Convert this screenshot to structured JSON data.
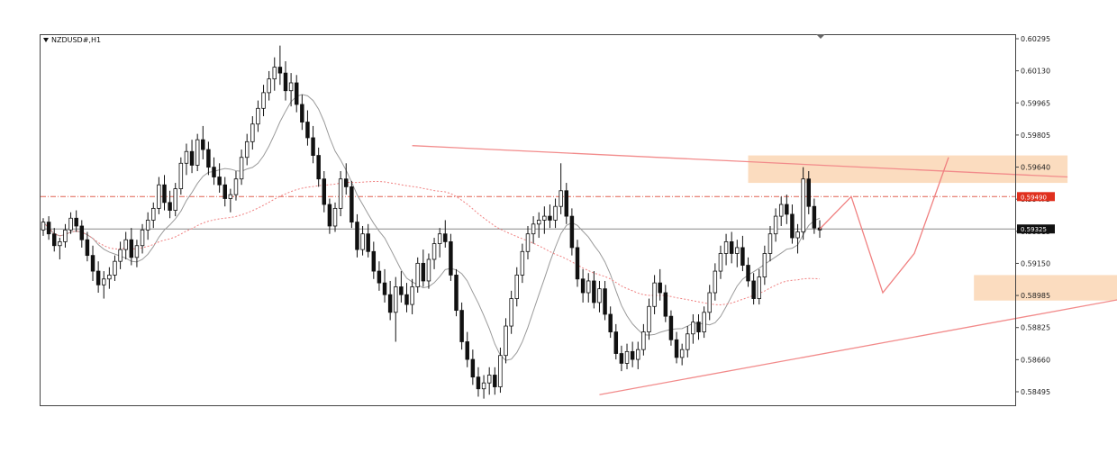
{
  "chart_data": {
    "type": "candlestick",
    "title": "NZDUSD#,H1",
    "y_ticks": [
      "0.60295",
      "0.60130",
      "0.59965",
      "0.59805",
      "0.59640",
      "0.59475",
      "0.59315",
      "0.59150",
      "0.58985",
      "0.58825",
      "0.58660",
      "0.58495"
    ],
    "ylim": [
      0.5844,
      0.6031
    ],
    "price_tags": [
      {
        "name": "red-level",
        "value": "0.59490",
        "color": "#e0301e"
      },
      {
        "name": "current-price",
        "value": "0.59325",
        "color": "#111111"
      }
    ],
    "x_range": [
      0,
      195
    ],
    "candles": [
      [
        0,
        0.5932,
        0.5938,
        0.5929,
        0.5936
      ],
      [
        1,
        0.5936,
        0.5939,
        0.5927,
        0.593
      ],
      [
        2,
        0.593,
        0.5933,
        0.5921,
        0.5924
      ],
      [
        3,
        0.5924,
        0.5928,
        0.5917,
        0.5926
      ],
      [
        4,
        0.5926,
        0.5935,
        0.5923,
        0.5932
      ],
      [
        5,
        0.5932,
        0.5941,
        0.593,
        0.5938
      ],
      [
        6,
        0.5938,
        0.5942,
        0.5931,
        0.5934
      ],
      [
        7,
        0.5934,
        0.5937,
        0.5923,
        0.5927
      ],
      [
        8,
        0.5927,
        0.5931,
        0.5916,
        0.5919
      ],
      [
        9,
        0.5919,
        0.5924,
        0.5906,
        0.5911
      ],
      [
        10,
        0.5911,
        0.5916,
        0.59,
        0.5904
      ],
      [
        11,
        0.5904,
        0.5911,
        0.5897,
        0.5907
      ],
      [
        12,
        0.5907,
        0.5913,
        0.5902,
        0.5909
      ],
      [
        13,
        0.5909,
        0.5919,
        0.5906,
        0.5916
      ],
      [
        14,
        0.5916,
        0.5926,
        0.5912,
        0.5922
      ],
      [
        15,
        0.5922,
        0.5931,
        0.5917,
        0.5927
      ],
      [
        16,
        0.5927,
        0.5933,
        0.5914,
        0.5918
      ],
      [
        17,
        0.5918,
        0.5927,
        0.5913,
        0.5924
      ],
      [
        18,
        0.5924,
        0.5935,
        0.592,
        0.5932
      ],
      [
        19,
        0.5932,
        0.5941,
        0.5927,
        0.5937
      ],
      [
        20,
        0.5937,
        0.5946,
        0.5933,
        0.5943
      ],
      [
        21,
        0.5943,
        0.5959,
        0.594,
        0.5955
      ],
      [
        22,
        0.5955,
        0.596,
        0.5942,
        0.5946
      ],
      [
        23,
        0.5946,
        0.5952,
        0.5938,
        0.5942
      ],
      [
        24,
        0.5942,
        0.5956,
        0.5939,
        0.5953
      ],
      [
        25,
        0.5953,
        0.5969,
        0.595,
        0.5966
      ],
      [
        26,
        0.5966,
        0.5976,
        0.596,
        0.5972
      ],
      [
        27,
        0.5972,
        0.5978,
        0.5961,
        0.5965
      ],
      [
        28,
        0.5965,
        0.5981,
        0.5962,
        0.5978
      ],
      [
        29,
        0.5978,
        0.5985,
        0.5968,
        0.5973
      ],
      [
        30,
        0.5973,
        0.5977,
        0.596,
        0.5964
      ],
      [
        31,
        0.5964,
        0.5969,
        0.5955,
        0.5959
      ],
      [
        32,
        0.5959,
        0.5966,
        0.5951,
        0.5955
      ],
      [
        33,
        0.5955,
        0.5959,
        0.5944,
        0.5948
      ],
      [
        34,
        0.5948,
        0.5953,
        0.5941,
        0.595
      ],
      [
        35,
        0.595,
        0.5962,
        0.5947,
        0.5958
      ],
      [
        36,
        0.5958,
        0.5973,
        0.5955,
        0.5969
      ],
      [
        37,
        0.5969,
        0.5981,
        0.5965,
        0.5977
      ],
      [
        38,
        0.5977,
        0.599,
        0.5973,
        0.5986
      ],
      [
        39,
        0.5986,
        0.5998,
        0.5982,
        0.5994
      ],
      [
        40,
        0.5994,
        0.6006,
        0.599,
        0.6002
      ],
      [
        41,
        0.6002,
        0.6013,
        0.5998,
        0.6009
      ],
      [
        42,
        0.6009,
        0.602,
        0.6003,
        0.6015
      ],
      [
        43,
        0.6015,
        0.6026,
        0.6006,
        0.6012
      ],
      [
        44,
        0.6012,
        0.6018,
        0.5998,
        0.6003
      ],
      [
        45,
        0.6003,
        0.6012,
        0.5995,
        0.6007
      ],
      [
        46,
        0.6007,
        0.6011,
        0.5992,
        0.5996
      ],
      [
        47,
        0.5996,
        0.6001,
        0.5983,
        0.5987
      ],
      [
        48,
        0.5987,
        0.5993,
        0.5975,
        0.5979
      ],
      [
        49,
        0.5979,
        0.5985,
        0.5966,
        0.597
      ],
      [
        50,
        0.597,
        0.5974,
        0.5954,
        0.5958
      ],
      [
        51,
        0.5958,
        0.5962,
        0.5941,
        0.5945
      ],
      [
        52,
        0.5945,
        0.5948,
        0.593,
        0.5934
      ],
      [
        53,
        0.5934,
        0.5946,
        0.5931,
        0.5943
      ],
      [
        54,
        0.5943,
        0.5962,
        0.5939,
        0.5958
      ],
      [
        55,
        0.5958,
        0.5966,
        0.595,
        0.5954
      ],
      [
        56,
        0.5954,
        0.5957,
        0.5933,
        0.5936
      ],
      [
        57,
        0.5936,
        0.594,
        0.5918,
        0.5922
      ],
      [
        58,
        0.5922,
        0.5934,
        0.5919,
        0.593
      ],
      [
        59,
        0.593,
        0.5935,
        0.5918,
        0.5921
      ],
      [
        60,
        0.5921,
        0.5926,
        0.5907,
        0.5911
      ],
      [
        61,
        0.5911,
        0.5916,
        0.5901,
        0.5905
      ],
      [
        62,
        0.5905,
        0.5912,
        0.5895,
        0.5899
      ],
      [
        63,
        0.5899,
        0.5906,
        0.5886,
        0.589
      ],
      [
        64,
        0.589,
        0.5908,
        0.5875,
        0.5903
      ],
      [
        65,
        0.5903,
        0.5911,
        0.5895,
        0.5899
      ],
      [
        66,
        0.5899,
        0.5905,
        0.589,
        0.5894
      ],
      [
        67,
        0.5894,
        0.5907,
        0.5889,
        0.5903
      ],
      [
        68,
        0.5903,
        0.5918,
        0.59,
        0.5915
      ],
      [
        69,
        0.5915,
        0.5922,
        0.5903,
        0.5906
      ],
      [
        70,
        0.5906,
        0.592,
        0.5902,
        0.5917
      ],
      [
        71,
        0.5917,
        0.5928,
        0.5912,
        0.5925
      ],
      [
        72,
        0.5925,
        0.5933,
        0.5918,
        0.593
      ],
      [
        73,
        0.593,
        0.5937,
        0.5923,
        0.5926
      ],
      [
        74,
        0.5926,
        0.593,
        0.5906,
        0.5909
      ],
      [
        75,
        0.5909,
        0.5912,
        0.5888,
        0.5891
      ],
      [
        76,
        0.5891,
        0.5895,
        0.5871,
        0.5875
      ],
      [
        77,
        0.5875,
        0.588,
        0.5862,
        0.5866
      ],
      [
        78,
        0.5866,
        0.5871,
        0.5853,
        0.5857
      ],
      [
        79,
        0.5857,
        0.5862,
        0.5847,
        0.5851
      ],
      [
        80,
        0.5851,
        0.5858,
        0.5846,
        0.5854
      ],
      [
        81,
        0.5854,
        0.5862,
        0.5848,
        0.5858
      ],
      [
        82,
        0.5858,
        0.5862,
        0.5848,
        0.5852
      ],
      [
        83,
        0.5852,
        0.5872,
        0.5849,
        0.5868
      ],
      [
        84,
        0.5868,
        0.5887,
        0.5864,
        0.5883
      ],
      [
        85,
        0.5883,
        0.5901,
        0.5879,
        0.5897
      ],
      [
        86,
        0.5897,
        0.5913,
        0.5893,
        0.5909
      ],
      [
        87,
        0.5909,
        0.5925,
        0.5905,
        0.5921
      ],
      [
        88,
        0.5921,
        0.5934,
        0.5917,
        0.593
      ],
      [
        89,
        0.593,
        0.5939,
        0.5925,
        0.5935
      ],
      [
        90,
        0.5935,
        0.5941,
        0.5928,
        0.5937
      ],
      [
        91,
        0.5937,
        0.5944,
        0.593,
        0.5939
      ],
      [
        92,
        0.5939,
        0.5945,
        0.5933,
        0.5937
      ],
      [
        93,
        0.5937,
        0.5948,
        0.5933,
        0.5944
      ],
      [
        94,
        0.5944,
        0.5966,
        0.594,
        0.5952
      ],
      [
        95,
        0.5952,
        0.5956,
        0.5935,
        0.5939
      ],
      [
        96,
        0.5939,
        0.5943,
        0.5919,
        0.5923
      ],
      [
        97,
        0.5923,
        0.5927,
        0.5903,
        0.5907
      ],
      [
        98,
        0.5907,
        0.5912,
        0.5895,
        0.59
      ],
      [
        99,
        0.59,
        0.591,
        0.5895,
        0.5906
      ],
      [
        100,
        0.5906,
        0.5911,
        0.5892,
        0.5895
      ],
      [
        101,
        0.5895,
        0.5906,
        0.589,
        0.5902
      ],
      [
        102,
        0.5902,
        0.5906,
        0.5886,
        0.5889
      ],
      [
        103,
        0.5889,
        0.5893,
        0.5877,
        0.588
      ],
      [
        104,
        0.588,
        0.5884,
        0.5866,
        0.5869
      ],
      [
        105,
        0.5869,
        0.5873,
        0.586,
        0.5864
      ],
      [
        106,
        0.5864,
        0.5874,
        0.5861,
        0.587
      ],
      [
        107,
        0.587,
        0.5875,
        0.5862,
        0.5866
      ],
      [
        108,
        0.5866,
        0.5875,
        0.5861,
        0.5871
      ],
      [
        109,
        0.5871,
        0.5884,
        0.5868,
        0.588
      ],
      [
        110,
        0.588,
        0.5897,
        0.5876,
        0.5893
      ],
      [
        111,
        0.5893,
        0.5909,
        0.5889,
        0.5905
      ],
      [
        112,
        0.5905,
        0.5912,
        0.5896,
        0.59
      ],
      [
        113,
        0.59,
        0.5904,
        0.5885,
        0.5888
      ],
      [
        114,
        0.5888,
        0.5891,
        0.5873,
        0.5876
      ],
      [
        115,
        0.5876,
        0.588,
        0.5864,
        0.5867
      ],
      [
        116,
        0.5867,
        0.5874,
        0.5863,
        0.5871
      ],
      [
        117,
        0.5871,
        0.5883,
        0.5867,
        0.5879
      ],
      [
        118,
        0.5879,
        0.5889,
        0.5874,
        0.5885
      ],
      [
        119,
        0.5885,
        0.5889,
        0.5876,
        0.588
      ],
      [
        120,
        0.588,
        0.5893,
        0.5877,
        0.589
      ],
      [
        121,
        0.589,
        0.5904,
        0.5886,
        0.59
      ],
      [
        122,
        0.59,
        0.5915,
        0.5896,
        0.5911
      ],
      [
        123,
        0.5911,
        0.5924,
        0.5907,
        0.592
      ],
      [
        124,
        0.592,
        0.593,
        0.5914,
        0.5926
      ],
      [
        125,
        0.5926,
        0.5931,
        0.5915,
        0.592
      ],
      [
        126,
        0.592,
        0.5927,
        0.5913,
        0.5923
      ],
      [
        127,
        0.5923,
        0.5929,
        0.5911,
        0.5914
      ],
      [
        128,
        0.5914,
        0.5918,
        0.5903,
        0.5906
      ],
      [
        129,
        0.5906,
        0.591,
        0.5894,
        0.5897
      ],
      [
        130,
        0.5897,
        0.5912,
        0.5894,
        0.5908
      ],
      [
        131,
        0.5908,
        0.5924,
        0.5904,
        0.592
      ],
      [
        132,
        0.592,
        0.5934,
        0.5916,
        0.593
      ],
      [
        133,
        0.593,
        0.5943,
        0.5926,
        0.5939
      ],
      [
        134,
        0.5939,
        0.5949,
        0.5934,
        0.5945
      ],
      [
        135,
        0.5945,
        0.595,
        0.5935,
        0.594
      ],
      [
        136,
        0.594,
        0.5945,
        0.5925,
        0.5928
      ],
      [
        137,
        0.5928,
        0.5935,
        0.592,
        0.5931
      ],
      [
        138,
        0.5931,
        0.5964,
        0.5927,
        0.5958
      ],
      [
        139,
        0.5958,
        0.5962,
        0.594,
        0.5944
      ],
      [
        140,
        0.5944,
        0.5948,
        0.593,
        0.5933
      ],
      [
        141,
        0.5933,
        0.5937,
        0.5928,
        0.5932
      ]
    ],
    "overlays": {
      "ma_fast_color": "#9a9a9a",
      "ma_slow_color": "#f08080",
      "horizontal_levels": [
        {
          "name": "red-dashed-level",
          "price": 0.5949,
          "style": "dash-dot",
          "color": "#e06050"
        },
        {
          "name": "gray-price-line",
          "price": 0.59325,
          "style": "solid",
          "color": "#888888"
        }
      ],
      "zones": [
        {
          "name": "resistance-zone",
          "x": [
            128,
            186
          ],
          "price": [
            0.5956,
            0.597
          ],
          "color": "#fad6b4"
        },
        {
          "name": "support-zone",
          "x": [
            169,
            197
          ],
          "price": [
            0.5896,
            0.5909
          ],
          "color": "#fad6b4"
        }
      ],
      "trend_lines": [
        {
          "name": "upper-trend-line",
          "from": [
            67,
            0.5975
          ],
          "to": [
            186,
            0.5959
          ],
          "color": "#f28b8b"
        },
        {
          "name": "lower-trend-line",
          "from": [
            101,
            0.5848
          ],
          "to": [
            206,
            0.5902
          ],
          "color": "#f28b8b"
        }
      ],
      "projection": {
        "name": "projected-path",
        "points": [
          [
            141,
            0.59325
          ],
          [
            146,
            0.5949
          ],
          [
            151,
            0.59
          ],
          [
            156,
            0.592
          ],
          [
            161,
            0.5969
          ]
        ],
        "color": "#f08080"
      }
    }
  }
}
